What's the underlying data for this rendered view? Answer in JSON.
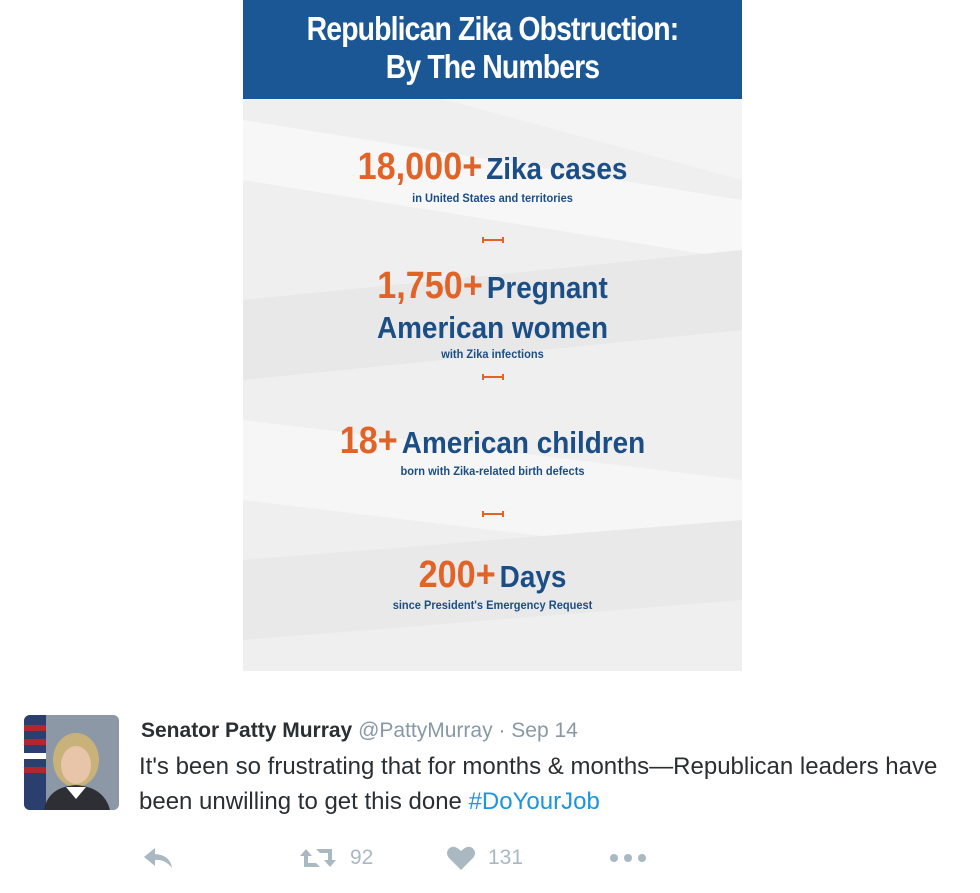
{
  "infographic": {
    "title_line1": "Republican Zika Obstruction:",
    "title_line2": "By The Numbers",
    "stats": [
      {
        "number": "18,000+",
        "label": "Zika cases",
        "sub": "in United States and territories"
      },
      {
        "number": "1,750+",
        "label": "Pregnant",
        "label2": "American women",
        "sub": "with Zika infections"
      },
      {
        "number": "18+",
        "label": "American children",
        "sub": "born with Zika-related birth defects"
      },
      {
        "number": "200+",
        "label": "Days",
        "sub": "since President's Emergency Request"
      }
    ],
    "colors": {
      "header_bg": "#1c5795",
      "number": "#e26327",
      "text": "#1c4e86"
    }
  },
  "tweet": {
    "author": "Senator Patty Murray",
    "handle": "@PattyMurray",
    "separator": "·",
    "date": "Sep 14",
    "text": "It's been so frustrating that for months & months—Republican leaders have been unwilling to get this done ",
    "hashtag": "#DoYourJob",
    "avatar_icon": "profile-photo",
    "actions": {
      "reply_icon": "reply-icon",
      "retweet_icon": "retweet-icon",
      "retweet_count": "92",
      "like_icon": "heart-icon",
      "like_count": "131",
      "more_icon": "more-icon"
    },
    "colors": {
      "hashtag": "#1b95e0",
      "muted": "#8899a6",
      "icons": "#aab8c2"
    }
  }
}
